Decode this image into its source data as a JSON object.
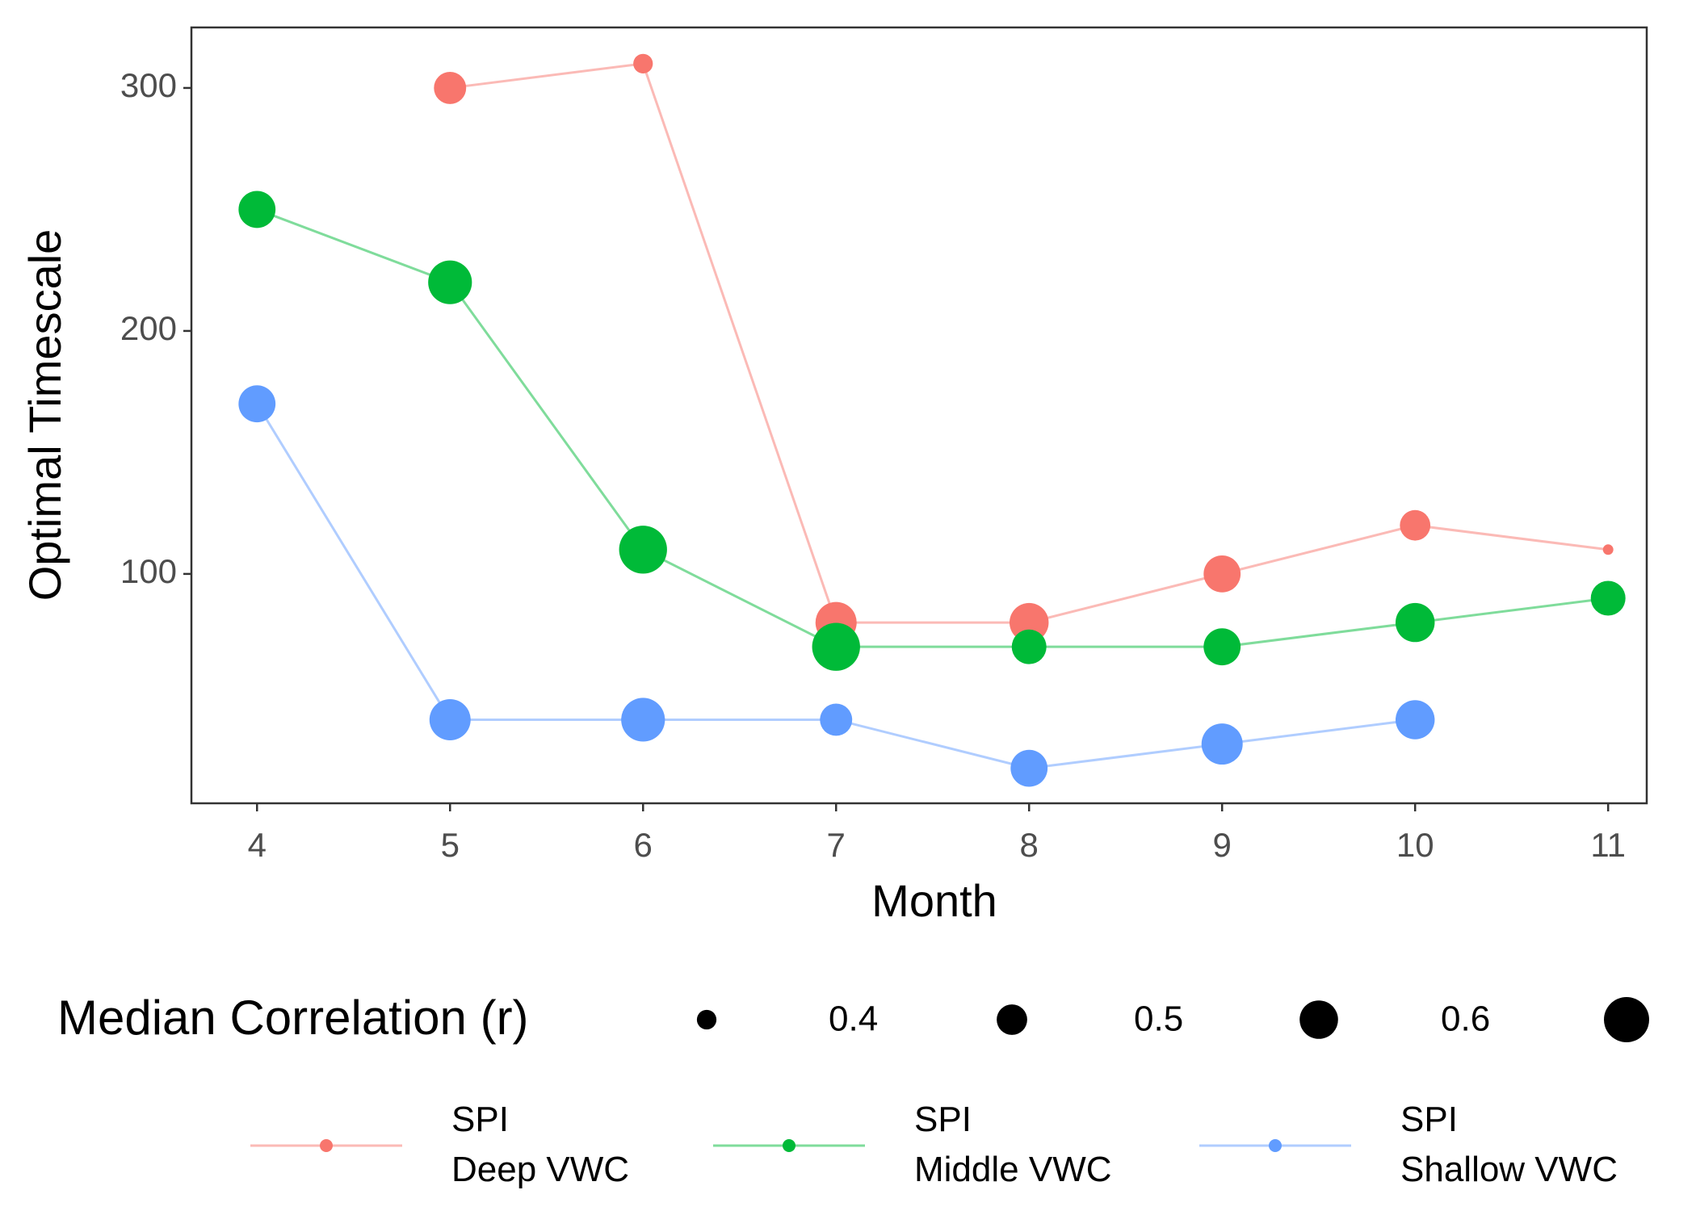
{
  "chart_data": {
    "type": "line",
    "x_label": "Month",
    "y_label": "Optimal Timescale",
    "x": [
      4,
      5,
      6,
      7,
      8,
      9,
      10,
      11
    ],
    "xlim": [
      3.66,
      11.2
    ],
    "xticks": [
      4,
      5,
      6,
      7,
      8,
      9,
      10,
      11
    ],
    "ylim": [
      5.6,
      324.9
    ],
    "yticks": [
      100,
      200,
      300
    ],
    "grid": false,
    "size_label": "Median Correlation (r)",
    "size_breaks": [
      0.4,
      0.5,
      0.6
    ],
    "series": [
      {
        "name": "SPI\nDeep VWC",
        "color": "#F8766D",
        "values": [
          null,
          300,
          310,
          80,
          80,
          100,
          120,
          110
        ],
        "sizes": [
          null,
          0.52,
          0.4,
          0.64,
          0.61,
          0.58,
          0.5,
          0.35
        ]
      },
      {
        "name": "SPI\nMiddle VWC",
        "color": "#00BA38",
        "values": [
          250,
          220,
          110,
          70,
          70,
          70,
          80,
          90
        ],
        "sizes": [
          0.58,
          0.68,
          0.75,
          0.75,
          0.55,
          0.58,
          0.61,
          0.55
        ]
      },
      {
        "name": "SPI\nShallow VWC",
        "color": "#619CFF",
        "values": [
          170,
          40,
          40,
          40,
          20,
          30,
          40,
          null
        ],
        "sizes": [
          0.58,
          0.64,
          0.68,
          0.52,
          0.58,
          0.64,
          0.61,
          null
        ]
      }
    ]
  }
}
